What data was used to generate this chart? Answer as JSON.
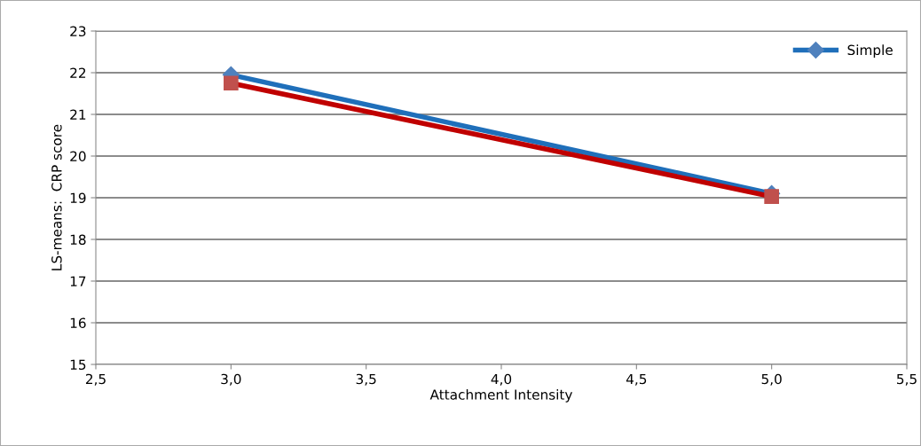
{
  "chart_data": {
    "type": "line",
    "xlabel": "Attachment Intensity",
    "ylabel": "LS-means:  CRP score",
    "xlim": [
      2.5,
      5.5
    ],
    "xticks": [
      {
        "value": 2.5,
        "label": "2,5"
      },
      {
        "value": 3.0,
        "label": "3,0"
      },
      {
        "value": 3.5,
        "label": "3,5"
      },
      {
        "value": 4.0,
        "label": "4,0"
      },
      {
        "value": 4.5,
        "label": "4,5"
      },
      {
        "value": 5.0,
        "label": "5,0"
      },
      {
        "value": 5.5,
        "label": "5,5"
      }
    ],
    "x": [
      3.0,
      5.0
    ],
    "ylim": [
      15,
      23
    ],
    "yticks": [
      15,
      16,
      17,
      18,
      19,
      20,
      21,
      22,
      23
    ],
    "grid": "y",
    "legend": "top right",
    "series": [
      {
        "name": "Simple",
        "color": "#1f6fba",
        "values": [
          21.95,
          19.1
        ],
        "marker": "diamond"
      },
      {
        "color": "#c00000",
        "values": [
          21.75,
          19.03
        ],
        "marker": "square"
      }
    ]
  }
}
